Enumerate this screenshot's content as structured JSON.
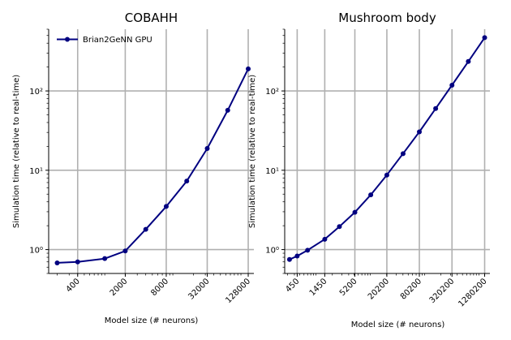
{
  "chart_data": [
    {
      "type": "line",
      "title": "COBAHH",
      "xlabel": "Model size (# neurons)",
      "ylabel": "Simulation time (relative to real-time)",
      "xscale": "log",
      "yscale": "log",
      "ylim": [
        0.5,
        600
      ],
      "grid": true,
      "legend": "top-left",
      "xticks": [
        {
          "value": 400,
          "label": "400"
        },
        {
          "value": 2000,
          "label": "2000"
        },
        {
          "value": 8000,
          "label": "8000"
        },
        {
          "value": 32000,
          "label": "32000"
        },
        {
          "value": 128000,
          "label": "128000"
        }
      ],
      "yticks": [
        {
          "value": 1,
          "label": "10⁰"
        },
        {
          "value": 10,
          "label": "10¹"
        },
        {
          "value": 100,
          "label": "10²"
        }
      ],
      "series": [
        {
          "name": "Brian2GeNN GPU",
          "color": "#000080",
          "x": [
            200,
            400,
            1000,
            2000,
            4000,
            8000,
            16000,
            32000,
            64000,
            128000
          ],
          "y": [
            0.68,
            0.7,
            0.77,
            0.96,
            1.8,
            3.5,
            7.3,
            18.8,
            57,
            190
          ]
        }
      ]
    },
    {
      "type": "line",
      "title": "Mushroom body",
      "xlabel": "Model size (# neurons)",
      "ylabel": "Simulation time (relative to real-time)",
      "xscale": "log",
      "yscale": "log",
      "ylim": [
        0.5,
        600
      ],
      "grid": true,
      "xticks": [
        {
          "value": 450,
          "label": "450"
        },
        {
          "value": 1450,
          "label": "1450"
        },
        {
          "value": 5200,
          "label": "5200"
        },
        {
          "value": 20200,
          "label": "20200"
        },
        {
          "value": 80200,
          "label": "80200"
        },
        {
          "value": 320200,
          "label": "320200"
        },
        {
          "value": 1280200,
          "label": "1280200"
        }
      ],
      "yticks": [
        {
          "value": 1,
          "label": "10⁰"
        },
        {
          "value": 10,
          "label": "10¹"
        },
        {
          "value": 100,
          "label": "10²"
        }
      ],
      "series": [
        {
          "name": "Brian2GeNN GPU",
          "color": "#000080",
          "x": [
            325,
            450,
            700,
            1450,
            2700,
            5200,
            10200,
            20200,
            40200,
            80200,
            160200,
            320200,
            640200,
            1280200
          ],
          "y": [
            0.75,
            0.83,
            0.98,
            1.35,
            1.95,
            2.95,
            4.9,
            8.7,
            16.2,
            30.5,
            60,
            118,
            235,
            470
          ]
        }
      ]
    }
  ]
}
